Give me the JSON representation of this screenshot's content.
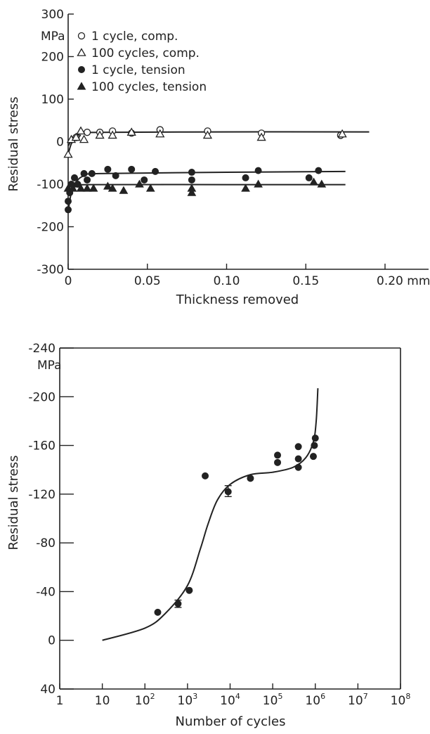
{
  "chart_data": [
    {
      "type": "scatter",
      "xlabel": "Thickness removed",
      "ylabel": "Residual stress",
      "x_unit": "mm",
      "y_unit": "MPa",
      "xlim": [
        0,
        0.2
      ],
      "ylim": [
        -300,
        300
      ],
      "x_ticks": [
        0,
        0.05,
        0.1,
        0.15,
        0.2
      ],
      "x_tick_labels": [
        "0",
        "0.05",
        "0.10",
        "0.15",
        "0.20"
      ],
      "y_ticks": [
        300,
        200,
        100,
        0,
        -100,
        -200,
        -300
      ],
      "y_tick_labels": [
        "300",
        "200",
        "100",
        "0",
        "-100",
        "-200",
        "-300"
      ],
      "legend_position": "top-left",
      "grid": false,
      "series": [
        {
          "name": "1 cycle, comp.",
          "marker": "open-circle",
          "points": [
            [
              0.005,
              10
            ],
            [
              0.012,
              22
            ],
            [
              0.02,
              22
            ],
            [
              0.028,
              25
            ],
            [
              0.04,
              20
            ],
            [
              0.058,
              28
            ],
            [
              0.088,
              25
            ],
            [
              0.122,
              20
            ],
            [
              0.172,
              15
            ]
          ],
          "fit": [
            [
              0,
              -10
            ],
            [
              0.003,
              8
            ],
            [
              0.006,
              16
            ],
            [
              0.01,
              20
            ],
            [
              0.02,
              22
            ],
            [
              0.1,
              23
            ],
            [
              0.19,
              23
            ]
          ]
        },
        {
          "name": "100 cycles, comp.",
          "marker": "open-triangle",
          "points": [
            [
              0,
              -30
            ],
            [
              0.002,
              5
            ],
            [
              0.005,
              10
            ],
            [
              0.008,
              25
            ],
            [
              0.01,
              5
            ],
            [
              0.02,
              15
            ],
            [
              0.028,
              15
            ],
            [
              0.04,
              22
            ],
            [
              0.058,
              18
            ],
            [
              0.088,
              15
            ],
            [
              0.122,
              10
            ],
            [
              0.173,
              18
            ]
          ],
          "fit": [
            [
              0,
              -30
            ],
            [
              0.002,
              -5
            ],
            [
              0.005,
              8
            ],
            [
              0.008,
              15
            ]
          ]
        },
        {
          "name": "1 cycle, tension",
          "marker": "filled-circle",
          "points": [
            [
              0,
              -160
            ],
            [
              0,
              -140
            ],
            [
              0.001,
              -120
            ],
            [
              0.002,
              -100
            ],
            [
              0.004,
              -85
            ],
            [
              0.006,
              -100
            ],
            [
              0.01,
              -75
            ],
            [
              0.012,
              -90
            ],
            [
              0.015,
              -75
            ],
            [
              0.025,
              -65
            ],
            [
              0.03,
              -80
            ],
            [
              0.04,
              -65
            ],
            [
              0.048,
              -90
            ],
            [
              0.055,
              -70
            ],
            [
              0.078,
              -72
            ],
            [
              0.078,
              -90
            ],
            [
              0.112,
              -85
            ],
            [
              0.12,
              -68
            ],
            [
              0.152,
              -85
            ],
            [
              0.158,
              -68
            ]
          ],
          "fit": [
            [
              0,
              -165
            ],
            [
              0.002,
              -120
            ],
            [
              0.005,
              -95
            ],
            [
              0.01,
              -80
            ],
            [
              0.02,
              -75
            ],
            [
              0.1,
              -72
            ],
            [
              0.175,
              -70
            ]
          ]
        },
        {
          "name": "100 cycles, tension",
          "marker": "filled-triangle",
          "points": [
            [
              0,
              -110
            ],
            [
              0.003,
              -110
            ],
            [
              0.006,
              -100
            ],
            [
              0.008,
              -110
            ],
            [
              0.012,
              -110
            ],
            [
              0.016,
              -110
            ],
            [
              0.025,
              -105
            ],
            [
              0.028,
              -110
            ],
            [
              0.035,
              -115
            ],
            [
              0.045,
              -100
            ],
            [
              0.052,
              -110
            ],
            [
              0.078,
              -110
            ],
            [
              0.078,
              -120
            ],
            [
              0.112,
              -110
            ],
            [
              0.12,
              -100
            ],
            [
              0.155,
              -95
            ],
            [
              0.16,
              -100
            ]
          ],
          "fit": [
            [
              0,
              -125
            ],
            [
              0.002,
              -110
            ],
            [
              0.006,
              -103
            ],
            [
              0.015,
              -101
            ],
            [
              0.1,
              -101
            ],
            [
              0.175,
              -101
            ]
          ]
        }
      ],
      "legend": [
        "1 cycle, comp.",
        "100 cycles, comp.",
        "1 cycle, tension",
        "100 cycles, tension"
      ]
    },
    {
      "type": "scatter",
      "xlabel": "Number of cycles",
      "ylabel": "Residual stress",
      "y_unit": "MPa",
      "x_scale": "log",
      "xlim": [
        1,
        100000000
      ],
      "ylim": [
        40,
        -240
      ],
      "y_inverted": true,
      "x_ticks": [
        1,
        10,
        100,
        1000,
        10000,
        100000,
        1000000,
        10000000,
        100000000
      ],
      "x_tick_labels": [
        {
          "base": "1",
          "exp": ""
        },
        {
          "base": "10",
          "exp": ""
        },
        {
          "base": "10",
          "exp": "2"
        },
        {
          "base": "10",
          "exp": "3"
        },
        {
          "base": "10",
          "exp": "4"
        },
        {
          "base": "10",
          "exp": "5"
        },
        {
          "base": "10",
          "exp": "6"
        },
        {
          "base": "10",
          "exp": "7"
        },
        {
          "base": "10",
          "exp": "8"
        }
      ],
      "y_ticks": [
        -240,
        -200,
        -160,
        -120,
        -80,
        -40,
        0,
        40
      ],
      "y_tick_labels": [
        "-240",
        "-200",
        "-160",
        "-120",
        "-80",
        "-40",
        "0",
        "40"
      ],
      "grid": false,
      "series": [
        {
          "marker": "filled-circle",
          "points": [
            [
              200,
              -23
            ],
            [
              600,
              -30
            ],
            [
              1100,
              -41
            ],
            [
              2600,
              -135
            ],
            [
              9000,
              -122
            ],
            [
              30000,
              -133
            ],
            [
              130000,
              -152
            ],
            [
              130000,
              -146
            ],
            [
              400000,
              -159
            ],
            [
              400000,
              -142
            ],
            [
              400000,
              -149
            ],
            [
              900000,
              -151
            ],
            [
              950000,
              -160
            ],
            [
              1000000,
              -166
            ]
          ],
          "error_bars": [
            [
              600,
              -33,
              -27
            ],
            [
              9000,
              -127,
              -118
            ]
          ]
        }
      ],
      "fit": [
        [
          10,
          0
        ],
        [
          100,
          -10
        ],
        [
          300,
          -22
        ],
        [
          1000,
          -45
        ],
        [
          2000,
          -75
        ],
        [
          3000,
          -95
        ],
        [
          5000,
          -115
        ],
        [
          10000,
          -128
        ],
        [
          30000,
          -136
        ],
        [
          100000,
          -138
        ],
        [
          300000,
          -142
        ],
        [
          600000,
          -150
        ],
        [
          900000,
          -163
        ],
        [
          1050000,
          -180
        ],
        [
          1150000,
          -207
        ]
      ]
    }
  ]
}
